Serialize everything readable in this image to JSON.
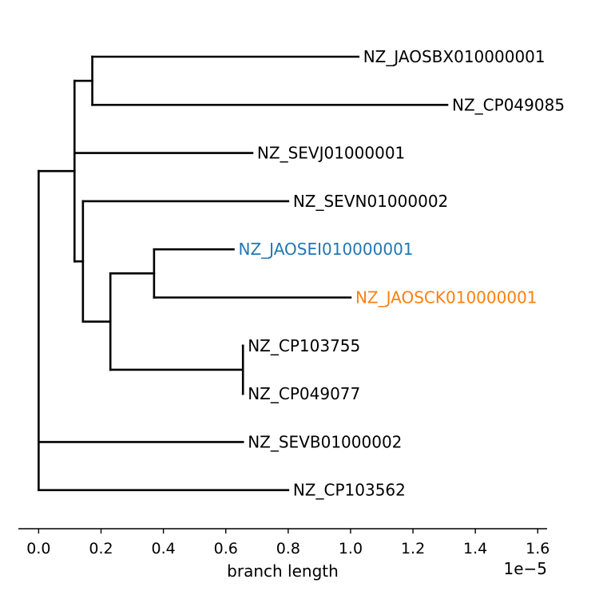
{
  "chart_data": {
    "type": "tree",
    "xlabel": "branch length",
    "x_offset_label": "1e−5",
    "xlim": [
      -0.065,
      1.63
    ],
    "xticks": [
      0.0,
      0.2,
      0.4,
      0.6,
      0.8,
      1.0,
      1.2,
      1.4,
      1.6
    ],
    "xtick_labels": [
      "0.0",
      "0.2",
      "0.4",
      "0.6",
      "0.8",
      "1.0",
      "1.2",
      "1.4",
      "1.6"
    ],
    "colors": {
      "default": "#000000",
      "blue": "#1f77b4",
      "orange": "#ff7f0e"
    },
    "tree": {
      "x": 0.0,
      "children": [
        {
          "x": 0.115,
          "children": [
            {
              "x": 0.172,
              "children": [
                {
                  "name": "NZ_JAOSBX010000001",
                  "x": 1.025
                },
                {
                  "name": "NZ_CP049085",
                  "x": 1.31
                }
              ]
            },
            {
              "name": "NZ_SEVJ01000001",
              "x": 0.685
            },
            {
              "x": 0.142,
              "children": [
                {
                  "name": "NZ_SEVN01000002",
                  "x": 0.8
                },
                {
                  "x": 0.23,
                  "children": [
                    {
                      "x": 0.37,
                      "children": [
                        {
                          "name": "NZ_JAOSEI010000001",
                          "x": 0.625,
                          "color": "blue"
                        },
                        {
                          "name": "NZ_JAOSCK010000001",
                          "x": 1.0,
                          "color": "orange"
                        }
                      ]
                    },
                    {
                      "x": 0.655,
                      "children": [
                        {
                          "name": "NZ_CP103755",
                          "x": 0.655
                        },
                        {
                          "name": "NZ_CP049077",
                          "x": 0.655
                        }
                      ]
                    }
                  ]
                }
              ]
            }
          ]
        },
        {
          "name": "NZ_SEVB01000002",
          "x": 0.655
        },
        {
          "name": "NZ_CP103562",
          "x": 0.8
        }
      ]
    }
  }
}
